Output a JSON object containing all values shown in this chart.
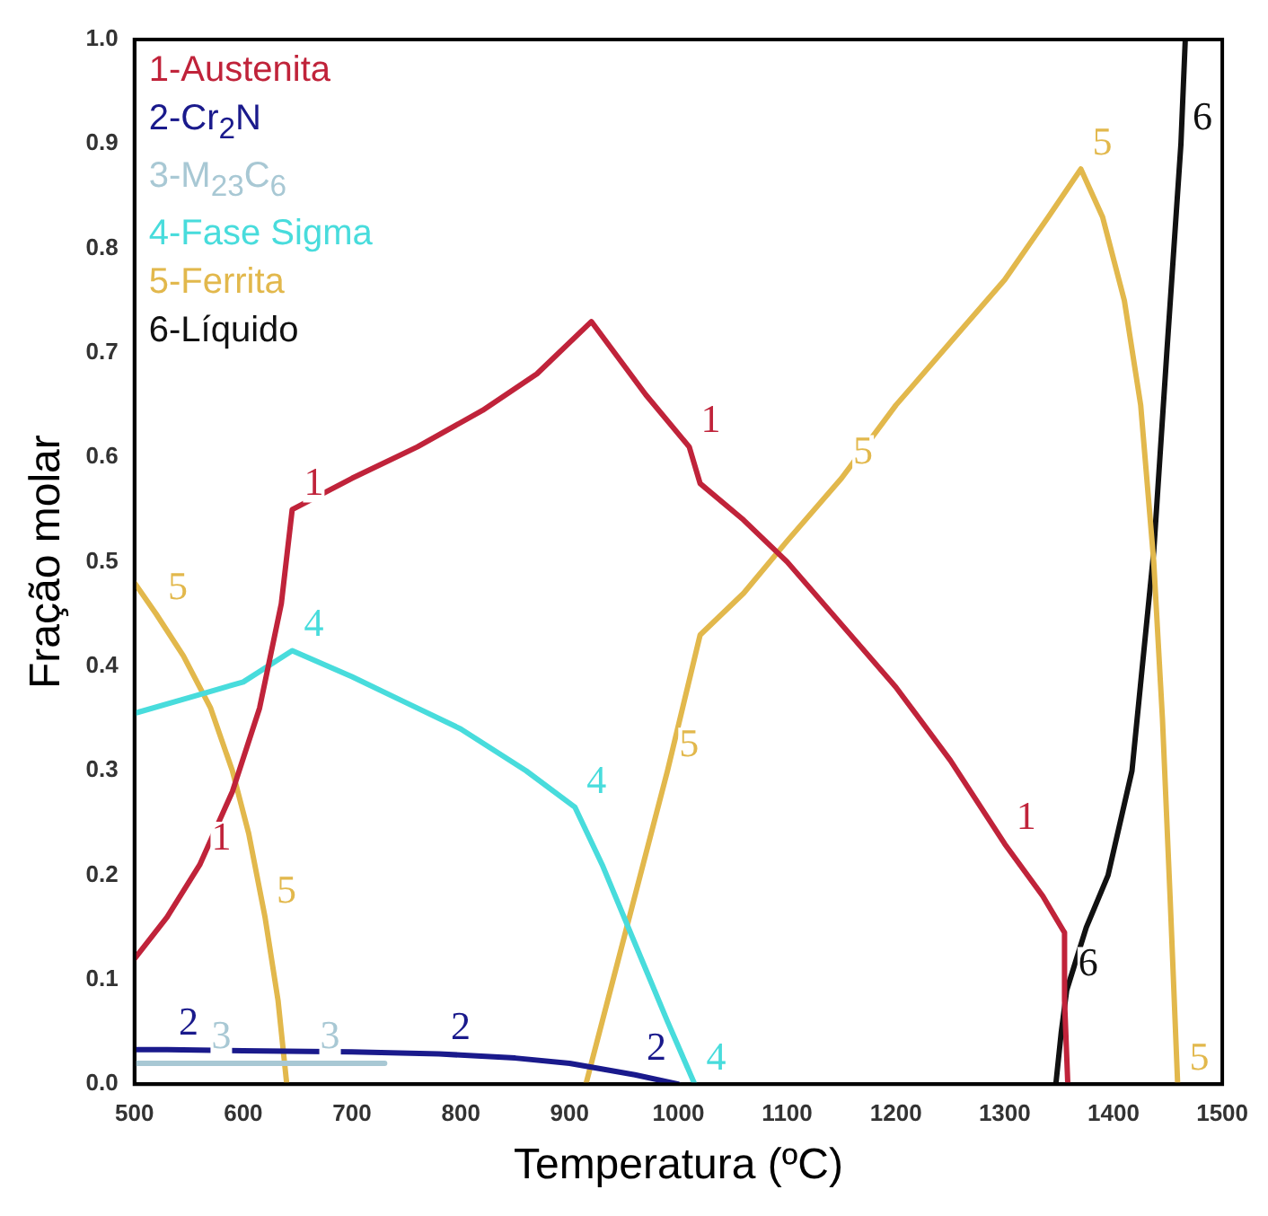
{
  "chart_data": {
    "type": "line",
    "xlabel": "Temperatura (ºC)",
    "ylabel": "Fração molar",
    "xlim": [
      500,
      1500
    ],
    "xticks": [
      500,
      600,
      700,
      800,
      900,
      1000,
      1100,
      1200,
      1300,
      1400,
      1500
    ],
    "ylim": [
      0,
      1
    ],
    "yticks": [
      {
        "value": 0,
        "label": "0.0"
      },
      {
        "value": 0.1,
        "label": "0.1"
      },
      {
        "value": 0.2,
        "label": "0.2"
      },
      {
        "value": 0.3,
        "label": "0.3"
      },
      {
        "value": 0.4,
        "label": "0.4"
      },
      {
        "value": 0.5,
        "label": "0.5"
      },
      {
        "value": 0.6,
        "label": "0.6"
      },
      {
        "value": 0.7,
        "label": "0.7"
      },
      {
        "value": 0.8,
        "label": "0.8"
      },
      {
        "value": 0.9,
        "label": "0.9"
      },
      {
        "value": 1,
        "label": "1.0"
      }
    ],
    "grid": false,
    "legend": "top left",
    "marker": "none",
    "line_style": "solid",
    "series": [
      {
        "name": "1-Austenita",
        "color": "#c0233a",
        "x": [
          500,
          530,
          560,
          590,
          615,
          635,
          645,
          700,
          760,
          820,
          870,
          920,
          970,
          1010,
          1020,
          1060,
          1100,
          1150,
          1200,
          1250,
          1300,
          1335,
          1355,
          1355,
          1358
        ],
        "values": [
          0.12,
          0.16,
          0.21,
          0.28,
          0.36,
          0.46,
          0.55,
          0.58,
          0.61,
          0.645,
          0.68,
          0.73,
          0.66,
          0.61,
          0.575,
          0.54,
          0.5,
          0.44,
          0.38,
          0.31,
          0.23,
          0.18,
          0.145,
          0.08,
          0
        ]
      },
      {
        "name": "2-Cr$_{2}$N",
        "color": "#1a1a8c",
        "x": [
          500,
          530,
          600,
          700,
          780,
          850,
          900,
          960,
          1000
        ],
        "values": [
          0.033,
          0.033,
          0.032,
          0.031,
          0.029,
          0.025,
          0.02,
          0.009,
          0
        ]
      },
      {
        "name": "3-M$_{23}$C$_{6}$",
        "color": "#a8c8d4",
        "x": [
          500,
          560,
          660,
          730
        ],
        "values": [
          0.02,
          0.02,
          0.02,
          0.02
        ]
      },
      {
        "name": "4-Fase Sigma",
        "color": "#48dcdc",
        "x": [
          500,
          550,
          600,
          645,
          700,
          750,
          800,
          860,
          905,
          930,
          950,
          970,
          990,
          1015
        ],
        "values": [
          0.355,
          0.37,
          0.385,
          0.415,
          0.39,
          0.365,
          0.34,
          0.3,
          0.265,
          0.21,
          0.16,
          0.11,
          0.06,
          0
        ]
      },
      {
        "name": "5-Ferrita",
        "color": "#e2b84c",
        "x": [
          500,
          520,
          545,
          570,
          590,
          605,
          620,
          632,
          640,
          780,
          915,
          940,
          965,
          990,
          1020,
          1060,
          1100,
          1150,
          1200,
          1250,
          1300,
          1340,
          1370,
          1390,
          1410,
          1425,
          1437,
          1445,
          1452,
          1459
        ],
        "values": [
          0.48,
          0.45,
          0.41,
          0.36,
          0.3,
          0.24,
          0.16,
          0.08,
          0,
          null,
          0,
          0.1,
          0.2,
          0.3,
          0.43,
          0.47,
          0.52,
          0.58,
          0.65,
          0.71,
          0.77,
          0.83,
          0.876,
          0.83,
          0.75,
          0.65,
          0.5,
          0.35,
          0.18,
          0
        ]
      },
      {
        "name": "6-Líquido",
        "color": "#111111",
        "x": [
          1347,
          1352,
          1357,
          1375,
          1395,
          1417,
          1437,
          1449,
          1462,
          1466
        ],
        "values": [
          0,
          0.05,
          0.09,
          0.15,
          0.2,
          0.3,
          0.51,
          0.7,
          0.9,
          1
        ]
      }
    ],
    "annotations": [
      {
        "text": "1",
        "x": 645,
        "y": 0.55
      },
      {
        "text": "1",
        "x": 1010,
        "y": 0.61
      },
      {
        "text": "1",
        "x": 560,
        "y": 0.21
      },
      {
        "text": "1",
        "x": 1300,
        "y": 0.23
      },
      {
        "text": "2",
        "x": 530,
        "y": 0.033
      },
      {
        "text": "2",
        "x": 780,
        "y": 0.029
      },
      {
        "text": "2",
        "x": 960,
        "y": 0.009
      },
      {
        "text": "3",
        "x": 560,
        "y": 0.02
      },
      {
        "text": "3",
        "x": 660,
        "y": 0.02
      },
      {
        "text": "4",
        "x": 645,
        "y": 0.415
      },
      {
        "text": "4",
        "x": 905,
        "y": 0.265
      },
      {
        "text": "4",
        "x": 1015,
        "y": 0
      },
      {
        "text": "5",
        "x": 520,
        "y": 0.45
      },
      {
        "text": "5",
        "x": 620,
        "y": 0.16
      },
      {
        "text": "5",
        "x": 990,
        "y": 0.3
      },
      {
        "text": "5",
        "x": 1150,
        "y": 0.58
      },
      {
        "text": "5",
        "x": 1370,
        "y": 0.876
      },
      {
        "text": "5",
        "x": 1459,
        "y": 0
      },
      {
        "text": "6",
        "x": 1462,
        "y": 0.9
      },
      {
        "text": "6",
        "x": 1357,
        "y": 0.09
      }
    ]
  }
}
